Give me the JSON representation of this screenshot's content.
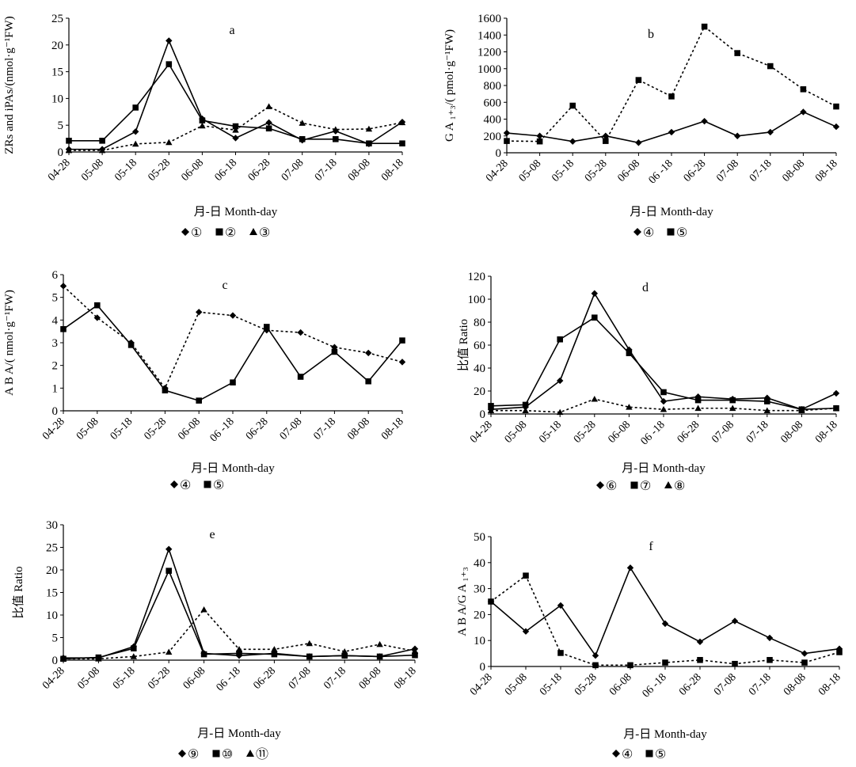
{
  "x_tick_labels": [
    "04-28",
    "05-08",
    "05-18",
    "05-28",
    "06-08",
    "06-18",
    "06-28",
    "07-08",
    "07-18",
    "08-08",
    "08-18"
  ],
  "x_tick_labels_spaced": [
    "04-28",
    "05-08",
    "05-18",
    "05-28",
    "06-08",
    "06 -18",
    "06-28",
    "07-08",
    "07-18",
    "08-08",
    "08-18"
  ],
  "chart_data": [
    {
      "id": "a",
      "type": "line",
      "panel_label": "a",
      "xlabel": "月-日 Month-day",
      "ylabel": "ZRs and iPAs/(nmol·g⁻¹FW)",
      "ylim": [
        0,
        25
      ],
      "yticks": [
        0,
        5,
        10,
        15,
        20,
        25
      ],
      "x_tick_style": "plain",
      "series": [
        {
          "name": "①",
          "marker": "diamond",
          "dash": "solid",
          "values": [
            0.5,
            0.5,
            3.8,
            20.8,
            6.2,
            2.6,
            5.5,
            2.2,
            3.9,
            1.5,
            5.6
          ]
        },
        {
          "name": "②",
          "marker": "square",
          "dash": "solid",
          "values": [
            2.1,
            2.1,
            8.3,
            16.4,
            5.9,
            4.8,
            4.4,
            2.4,
            2.4,
            1.6,
            1.6
          ]
        },
        {
          "name": "③",
          "marker": "triangle",
          "dash": "dashed",
          "values": [
            0.3,
            0.3,
            1.5,
            1.8,
            4.9,
            4.1,
            8.5,
            5.4,
            4.2,
            4.3,
            5.5
          ]
        }
      ]
    },
    {
      "id": "b",
      "type": "line",
      "panel_label": "b",
      "xlabel": "月-日 Month-day",
      "ylabel": "G A ₁₊₃/( pmol·g⁻¹FW)",
      "ylim": [
        0,
        1600
      ],
      "yticks": [
        0,
        200,
        400,
        600,
        800,
        1000,
        1200,
        1400,
        1600
      ],
      "x_tick_style": "spaced",
      "series": [
        {
          "name": "④",
          "marker": "diamond",
          "dash": "solid",
          "values": [
            235,
            200,
            135,
            200,
            120,
            245,
            375,
            200,
            245,
            485,
            310
          ]
        },
        {
          "name": "⑤",
          "marker": "square",
          "dash": "dashed",
          "values": [
            140,
            135,
            560,
            140,
            865,
            670,
            1500,
            1185,
            1030,
            755,
            550
          ]
        }
      ]
    },
    {
      "id": "c",
      "type": "line",
      "panel_label": "c",
      "xlabel": "月-日 Month-day",
      "ylabel": "A B A/( nmol·g⁻¹FW)",
      "ylim": [
        0,
        6
      ],
      "yticks": [
        0,
        1,
        2,
        3,
        4,
        5,
        6
      ],
      "x_tick_style": "spaced",
      "series": [
        {
          "name": "④",
          "marker": "diamond",
          "dash": "dashed",
          "values": [
            5.5,
            4.1,
            3.0,
            1.0,
            4.35,
            4.2,
            3.55,
            3.45,
            2.8,
            2.55,
            2.15
          ]
        },
        {
          "name": "⑤",
          "marker": "square",
          "dash": "solid",
          "values": [
            3.6,
            4.65,
            2.9,
            0.9,
            0.45,
            1.25,
            3.7,
            1.5,
            2.6,
            1.3,
            3.1
          ]
        }
      ]
    },
    {
      "id": "d",
      "type": "line",
      "panel_label": "d",
      "xlabel": "月-日 Month-day",
      "ylabel": "比值 Ratio",
      "ylim": [
        0,
        120
      ],
      "yticks": [
        0,
        20,
        40,
        60,
        80,
        100,
        120
      ],
      "x_tick_style": "spaced",
      "series": [
        {
          "name": "⑥",
          "marker": "diamond",
          "dash": "solid",
          "values": [
            4,
            6,
            29,
            105,
            56,
            11,
            15,
            13,
            14,
            4,
            18
          ]
        },
        {
          "name": "⑦",
          "marker": "square",
          "dash": "solid",
          "values": [
            7,
            8,
            65,
            84,
            53,
            19,
            12,
            12,
            11,
            4,
            5
          ]
        },
        {
          "name": "⑧",
          "marker": "triangle",
          "dash": "dashed",
          "values": [
            3,
            3,
            1.5,
            13,
            6,
            4,
            5,
            5,
            3,
            3,
            5
          ]
        }
      ]
    },
    {
      "id": "e",
      "type": "line",
      "panel_label": "e",
      "xlabel": "月-日 Month-day",
      "ylabel": "比值 Ratio",
      "ylim": [
        0,
        30
      ],
      "yticks": [
        0,
        5,
        10,
        15,
        20,
        25,
        30
      ],
      "x_tick_style": "spaced",
      "series": [
        {
          "name": "⑨",
          "marker": "diamond",
          "dash": "solid",
          "values": [
            0.5,
            0.5,
            3.0,
            24.6,
            1.5,
            1.0,
            1.5,
            0.8,
            1.0,
            0.8,
            2.5
          ]
        },
        {
          "name": "⑩",
          "marker": "square",
          "dash": "solid",
          "values": [
            0.3,
            0.6,
            2.6,
            19.8,
            1.3,
            1.5,
            1.3,
            0.8,
            1.0,
            0.8,
            1.1
          ]
        },
        {
          "name": "⑪",
          "marker": "triangle",
          "dash": "dashed",
          "values": [
            0.3,
            0.3,
            0.8,
            1.8,
            11.2,
            2.4,
            2.4,
            3.7,
            1.9,
            3.5,
            2.0
          ]
        }
      ]
    },
    {
      "id": "f",
      "type": "line",
      "panel_label": "f",
      "xlabel": "月-日 Month-day",
      "ylabel": "A B A/G A ₁₊₃",
      "ylim": [
        0,
        50
      ],
      "yticks": [
        0,
        10,
        20,
        30,
        40,
        50
      ],
      "x_tick_style": "spaced",
      "series": [
        {
          "name": "④",
          "marker": "diamond",
          "dash": "solid",
          "values": [
            25,
            13.5,
            23.5,
            4.2,
            38,
            16.5,
            9.5,
            17.5,
            11,
            5,
            6.8
          ]
        },
        {
          "name": "⑤",
          "marker": "square",
          "dash": "dashed",
          "values": [
            25,
            35,
            5.2,
            0.5,
            0.5,
            1.5,
            2.5,
            1,
            2.5,
            1.5,
            5.5
          ]
        }
      ]
    }
  ]
}
